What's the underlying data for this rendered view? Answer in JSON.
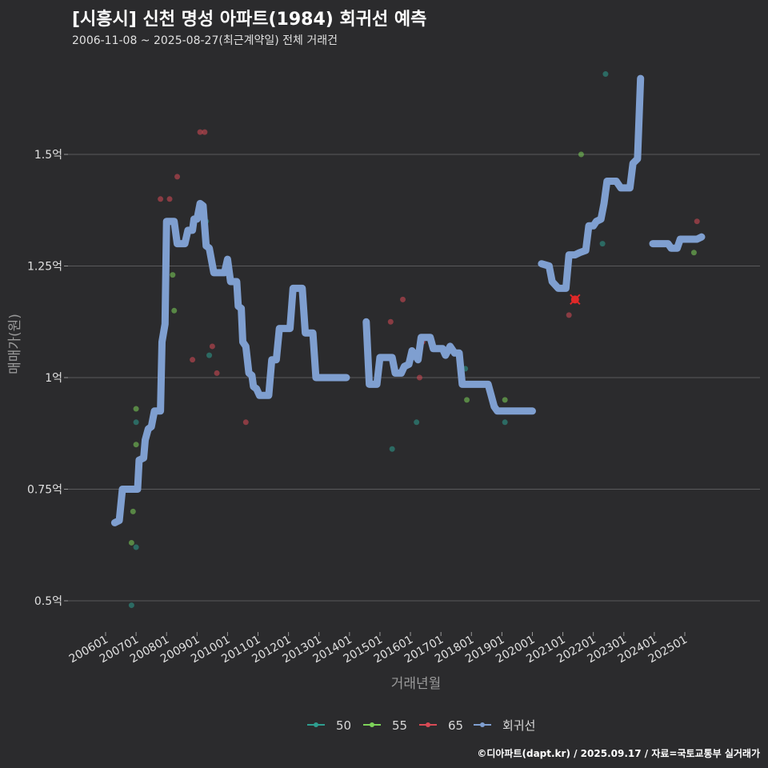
{
  "header": {
    "title": "[시흥시] 신천 명성 아파트(1984) 회귀선 예측",
    "subtitle": "2006-11-08 ~ 2025-08-27(최근계약일) 전체 거래건"
  },
  "footer": {
    "credit": "©디아파트(dapt.kr) / 2025.09.17 / 자료=국토교통부 실거래가"
  },
  "colors": {
    "background": "#2b2b2d",
    "grid": "#5a5a5c",
    "s50": "#2e9e8f",
    "s55": "#7dd35a",
    "s65": "#d84a55",
    "regression": "#7f9fd0",
    "marker": "#e02828"
  },
  "chart_data": {
    "type": "line",
    "xlabel": "거래년월",
    "ylabel": "매매가(원)",
    "x_ticks": [
      "200601",
      "200701",
      "200801",
      "200901",
      "201001",
      "201101",
      "201201",
      "201301",
      "201401",
      "201501",
      "201601",
      "201701",
      "201801",
      "201901",
      "202001",
      "202101",
      "202201",
      "202301",
      "202401",
      "202501"
    ],
    "y_ticks": [
      {
        "value": 0.5,
        "label": "0.5억"
      },
      {
        "value": 0.75,
        "label": "0.75억"
      },
      {
        "value": 1.0,
        "label": "1억"
      },
      {
        "value": 1.25,
        "label": "1.25억"
      },
      {
        "value": 1.5,
        "label": "1.5억"
      }
    ],
    "xlim": [
      2005.9,
      2027.0
    ],
    "ylim": [
      0.43,
      1.75
    ],
    "legend": {
      "position": "bottom",
      "items": [
        {
          "name": "50",
          "key": "s50"
        },
        {
          "name": "55",
          "key": "s55"
        },
        {
          "name": "65",
          "key": "s65"
        },
        {
          "name": "회귀선",
          "key": "regression"
        }
      ]
    },
    "scatter": {
      "s50": [
        [
          2006.85,
          0.49
        ],
        [
          2007.0,
          0.62
        ],
        [
          2007.0,
          0.9
        ],
        [
          2009.3,
          1.35
        ],
        [
          2009.4,
          1.05
        ],
        [
          2015.4,
          0.84
        ],
        [
          2016.2,
          0.9
        ],
        [
          2017.8,
          1.02
        ],
        [
          2019.1,
          0.9
        ],
        [
          2022.3,
          1.3
        ],
        [
          2022.4,
          1.68
        ]
      ],
      "s55": [
        [
          2006.85,
          0.63
        ],
        [
          2006.9,
          0.7
        ],
        [
          2007.0,
          0.85
        ],
        [
          2007.0,
          0.93
        ],
        [
          2008.2,
          1.23
        ],
        [
          2008.25,
          1.15
        ],
        [
          2017.85,
          0.95
        ],
        [
          2019.1,
          0.95
        ],
        [
          2021.6,
          1.5
        ],
        [
          2025.3,
          1.28
        ]
      ],
      "s65": [
        [
          2007.8,
          1.4
        ],
        [
          2008.1,
          1.4
        ],
        [
          2008.35,
          1.45
        ],
        [
          2008.85,
          1.04
        ],
        [
          2009.1,
          1.55
        ],
        [
          2009.25,
          1.55
        ],
        [
          2009.5,
          1.07
        ],
        [
          2009.65,
          1.01
        ],
        [
          2010.6,
          0.9
        ],
        [
          2015.35,
          1.125
        ],
        [
          2015.75,
          1.175
        ],
        [
          2016.3,
          1.0
        ],
        [
          2016.4,
          1.08
        ],
        [
          2021.2,
          1.14
        ],
        [
          2021.8,
          1.3
        ],
        [
          2025.4,
          1.35
        ]
      ]
    },
    "marker_point": [
      2021.4,
      1.175
    ],
    "regression": [
      [
        [
          2006.3,
          0.675
        ],
        [
          2006.45,
          0.68
        ],
        [
          2006.55,
          0.75
        ],
        [
          2006.9,
          0.75
        ],
        [
          2007.05,
          0.75
        ],
        [
          2007.1,
          0.815
        ],
        [
          2007.25,
          0.82
        ],
        [
          2007.3,
          0.86
        ],
        [
          2007.4,
          0.885
        ],
        [
          2007.5,
          0.89
        ],
        [
          2007.6,
          0.925
        ],
        [
          2007.8,
          0.925
        ],
        [
          2007.85,
          1.08
        ],
        [
          2007.95,
          1.12
        ],
        [
          2008.0,
          1.35
        ],
        [
          2008.25,
          1.35
        ],
        [
          2008.35,
          1.3
        ],
        [
          2008.6,
          1.3
        ],
        [
          2008.7,
          1.33
        ],
        [
          2008.85,
          1.33
        ],
        [
          2008.9,
          1.355
        ],
        [
          2009.0,
          1.355
        ],
        [
          2009.1,
          1.39
        ],
        [
          2009.2,
          1.385
        ],
        [
          2009.3,
          1.295
        ],
        [
          2009.4,
          1.29
        ],
        [
          2009.55,
          1.235
        ],
        [
          2009.9,
          1.235
        ],
        [
          2010.0,
          1.265
        ],
        [
          2010.1,
          1.215
        ],
        [
          2010.3,
          1.215
        ],
        [
          2010.35,
          1.16
        ],
        [
          2010.45,
          1.155
        ],
        [
          2010.5,
          1.08
        ],
        [
          2010.6,
          1.07
        ],
        [
          2010.7,
          1.01
        ],
        [
          2010.8,
          1.005
        ],
        [
          2010.85,
          0.98
        ],
        [
          2010.95,
          0.975
        ],
        [
          2011.05,
          0.96
        ],
        [
          2011.35,
          0.96
        ],
        [
          2011.45,
          1.04
        ],
        [
          2011.6,
          1.04
        ],
        [
          2011.7,
          1.11
        ],
        [
          2012.05,
          1.11
        ],
        [
          2012.15,
          1.2
        ],
        [
          2012.45,
          1.2
        ],
        [
          2012.55,
          1.1
        ],
        [
          2012.8,
          1.1
        ],
        [
          2012.9,
          1.0
        ],
        [
          2013.9,
          1.0
        ]
      ],
      [
        [
          2014.55,
          1.125
        ],
        [
          2014.65,
          0.985
        ],
        [
          2014.9,
          0.985
        ],
        [
          2015.0,
          1.045
        ],
        [
          2015.4,
          1.045
        ],
        [
          2015.5,
          1.01
        ],
        [
          2015.7,
          1.01
        ],
        [
          2015.8,
          1.025
        ],
        [
          2015.95,
          1.03
        ],
        [
          2016.05,
          1.06
        ],
        [
          2016.25,
          1.04
        ],
        [
          2016.35,
          1.09
        ],
        [
          2016.65,
          1.09
        ],
        [
          2016.75,
          1.065
        ],
        [
          2017.05,
          1.065
        ],
        [
          2017.15,
          1.05
        ],
        [
          2017.3,
          1.07
        ],
        [
          2017.45,
          1.055
        ],
        [
          2017.6,
          1.055
        ],
        [
          2017.7,
          0.985
        ],
        [
          2018.55,
          0.985
        ],
        [
          2018.65,
          0.96
        ],
        [
          2018.75,
          0.935
        ],
        [
          2018.85,
          0.925
        ],
        [
          2020.0,
          0.925
        ]
      ],
      [
        [
          2020.3,
          1.255
        ],
        [
          2020.55,
          1.25
        ],
        [
          2020.65,
          1.215
        ],
        [
          2020.85,
          1.2
        ],
        [
          2021.1,
          1.2
        ],
        [
          2021.2,
          1.275
        ],
        [
          2021.4,
          1.275
        ],
        [
          2021.55,
          1.28
        ],
        [
          2021.75,
          1.285
        ],
        [
          2021.85,
          1.34
        ],
        [
          2022.0,
          1.34
        ],
        [
          2022.1,
          1.35
        ],
        [
          2022.25,
          1.355
        ],
        [
          2022.35,
          1.39
        ],
        [
          2022.45,
          1.44
        ],
        [
          2022.75,
          1.44
        ],
        [
          2022.9,
          1.425
        ],
        [
          2023.2,
          1.425
        ],
        [
          2023.3,
          1.48
        ],
        [
          2023.45,
          1.49
        ],
        [
          2023.55,
          1.67
        ]
      ],
      [
        [
          2023.95,
          1.3
        ],
        [
          2024.45,
          1.3
        ],
        [
          2024.55,
          1.29
        ],
        [
          2024.75,
          1.29
        ],
        [
          2024.85,
          1.31
        ],
        [
          2025.4,
          1.31
        ],
        [
          2025.55,
          1.315
        ]
      ]
    ]
  }
}
